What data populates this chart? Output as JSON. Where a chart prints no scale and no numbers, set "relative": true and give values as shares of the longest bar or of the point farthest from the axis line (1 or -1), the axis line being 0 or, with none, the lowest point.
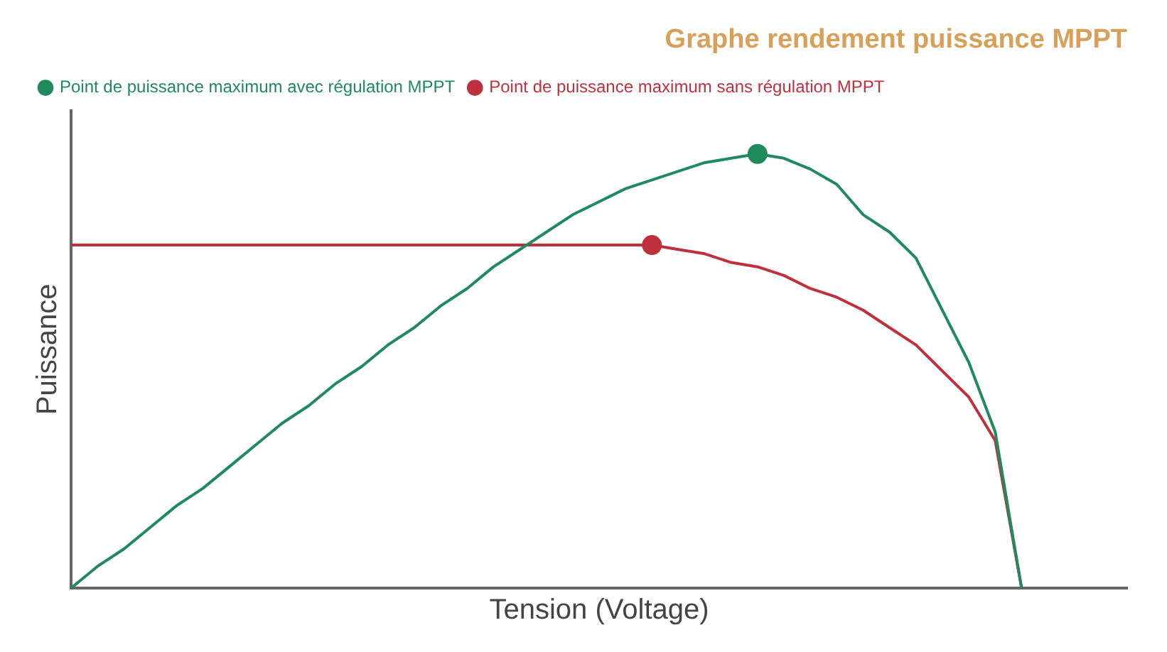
{
  "chart_data": {
    "type": "line",
    "title": "Graphe rendement puissance MPPT",
    "xlabel": "Tension (Voltage)",
    "ylabel": "Puissance",
    "relative": true,
    "legend": "top",
    "grid": false,
    "categories": [
      null,
      null,
      null,
      null,
      null,
      null,
      null,
      null,
      null,
      null,
      null,
      null,
      null,
      null,
      null,
      null,
      null,
      null,
      null,
      null,
      null,
      null,
      null,
      null,
      null,
      null,
      null,
      null,
      null,
      null,
      null,
      null,
      null,
      null,
      null,
      null,
      null,
      null,
      null,
      null,
      null
    ],
    "series": [
      {
        "name": "Point de puissance maximum avec régulation MPPT",
        "color": "#1f8a5e",
        "values": [
          0,
          0.05,
          0.09,
          0.14,
          0.19,
          0.23,
          0.28,
          0.33,
          0.38,
          0.42,
          0.47,
          0.51,
          0.56,
          0.6,
          0.65,
          0.69,
          0.74,
          0.78,
          0.82,
          0.86,
          0.89,
          0.92,
          0.94,
          0.96,
          0.98,
          0.99,
          1,
          0.99,
          0.965,
          0.93,
          0.86,
          0.82,
          0.76,
          0.64,
          0.52,
          0.36,
          0,
          null,
          null,
          null,
          null
        ]
      },
      {
        "name": "Point de puissance maximum sans régulation MPPT",
        "color": "#c0303c",
        "values": [
          0.79,
          0.79,
          0.79,
          0.79,
          0.79,
          0.79,
          0.79,
          0.79,
          0.79,
          0.79,
          0.79,
          0.79,
          0.79,
          0.79,
          0.79,
          0.79,
          0.79,
          0.79,
          0.79,
          0.79,
          0.79,
          0.79,
          0.79,
          0.78,
          0.77,
          0.75,
          0.74,
          0.72,
          0.69,
          0.67,
          0.64,
          0.6,
          0.56,
          0.5,
          0.44,
          0.34,
          0,
          null,
          null,
          null,
          null
        ]
      }
    ]
  }
}
